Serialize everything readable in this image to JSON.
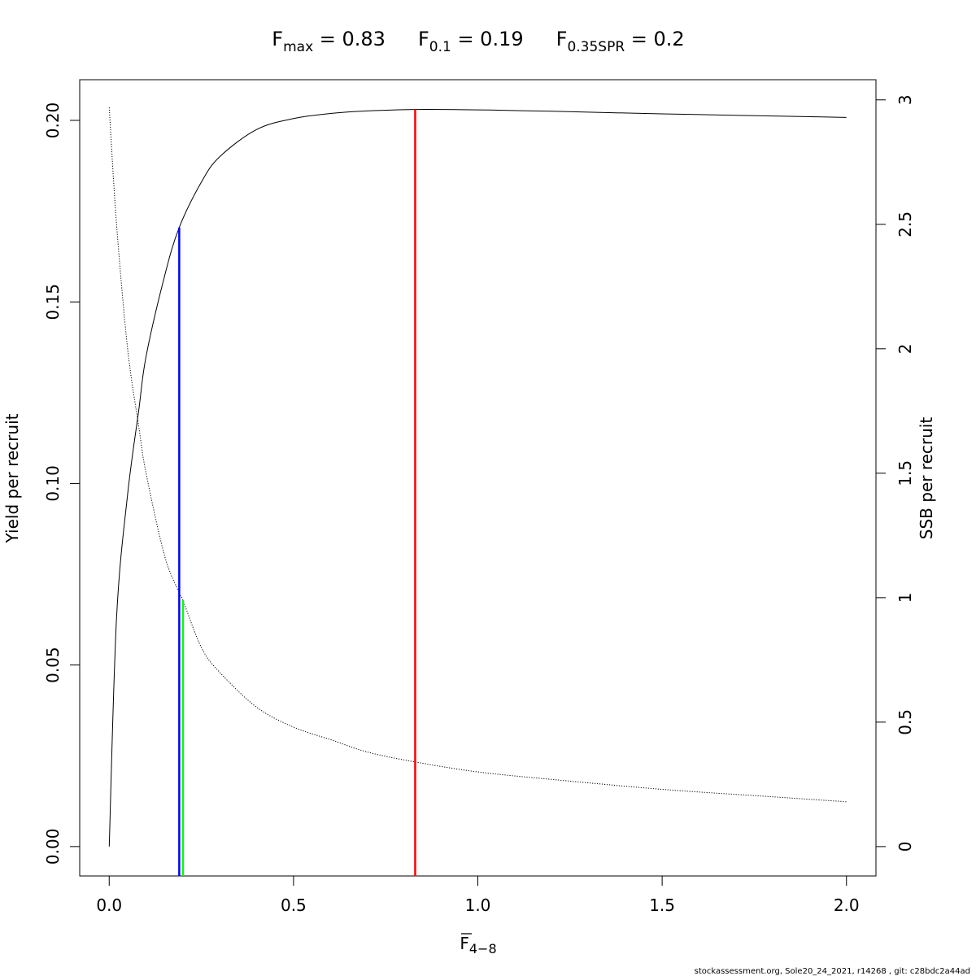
{
  "title": {
    "fmax_label": "F",
    "fmax_sub": "max",
    "fmax_value": " = 0.83",
    "f01_label": "F",
    "f01_sub": "0.1",
    "f01_value": " = 0.19",
    "fspr_label": "F",
    "fspr_sub": "0.35SPR",
    "fspr_value": " = 0.2"
  },
  "footer": "stockassessment.org, Sole20_24_2021, r14268 , git: c28bdc2a44ad",
  "chart_data": {
    "type": "line",
    "xlabel": {
      "main": "F",
      "sub": "4−8",
      "overline": true
    },
    "ylabel": "Yield per recruit",
    "y2label": "SSB per recruit",
    "xlim": [
      -0.08,
      2.08
    ],
    "ylim": [
      -0.0081,
      0.2112
    ],
    "y2lim": [
      -0.118,
      3.081
    ],
    "x_ticks": [
      0.0,
      0.5,
      1.0,
      1.5,
      2.0
    ],
    "x_tick_labels": [
      "0.0",
      "0.5",
      "1.0",
      "1.5",
      "2.0"
    ],
    "y_ticks": [
      0.0,
      0.05,
      0.1,
      0.15,
      0.2
    ],
    "y_tick_labels": [
      "0.00",
      "0.05",
      "0.10",
      "0.15",
      "0.20"
    ],
    "y2_ticks": [
      0,
      0.5,
      1,
      1.5,
      2,
      2.5,
      3
    ],
    "y2_tick_labels": [
      "0",
      "0.5",
      "1",
      "1.5",
      "2",
      "2.5",
      "3"
    ],
    "grid": false,
    "series": [
      {
        "axis": "left",
        "style": "solid",
        "color": "#000000",
        "x": [
          0,
          0.02,
          0.05,
          0.08,
          0.1,
          0.15,
          0.19,
          0.25,
          0.3,
          0.4,
          0.5,
          0.6,
          0.7,
          0.83,
          1.0,
          1.2,
          1.5,
          1.8,
          2.0
        ],
        "y": [
          0.0,
          0.063,
          0.097,
          0.12,
          0.135,
          0.157,
          0.1705,
          0.183,
          0.19,
          0.1975,
          0.2005,
          0.2019,
          0.2026,
          0.203,
          0.2029,
          0.2025,
          0.2018,
          0.2012,
          0.2008
        ]
      },
      {
        "axis": "right",
        "style": "dotted",
        "color": "#000000",
        "x": [
          0,
          0.02,
          0.05,
          0.08,
          0.1,
          0.15,
          0.19,
          0.2,
          0.25,
          0.3,
          0.4,
          0.5,
          0.6,
          0.7,
          0.83,
          1.0,
          1.2,
          1.5,
          1.8,
          2.0
        ],
        "y": [
          2.97,
          2.5,
          2.0,
          1.69,
          1.5,
          1.17,
          1.02,
          0.99,
          0.8,
          0.7,
          0.56,
          0.48,
          0.43,
          0.38,
          0.34,
          0.3,
          0.27,
          0.23,
          0.2,
          0.18
        ]
      }
    ],
    "reference_lines": [
      {
        "name": "F0.1",
        "x": 0.19,
        "axis": "left",
        "y_top": 0.1705,
        "color": "#0000ff"
      },
      {
        "name": "F0.35SPR",
        "x": 0.2,
        "axis": "right",
        "y_top": 0.99,
        "color": "#00ff00"
      },
      {
        "name": "Fmax",
        "x": 0.83,
        "axis": "left",
        "y_top": 0.203,
        "color": "#ff0000"
      }
    ]
  }
}
